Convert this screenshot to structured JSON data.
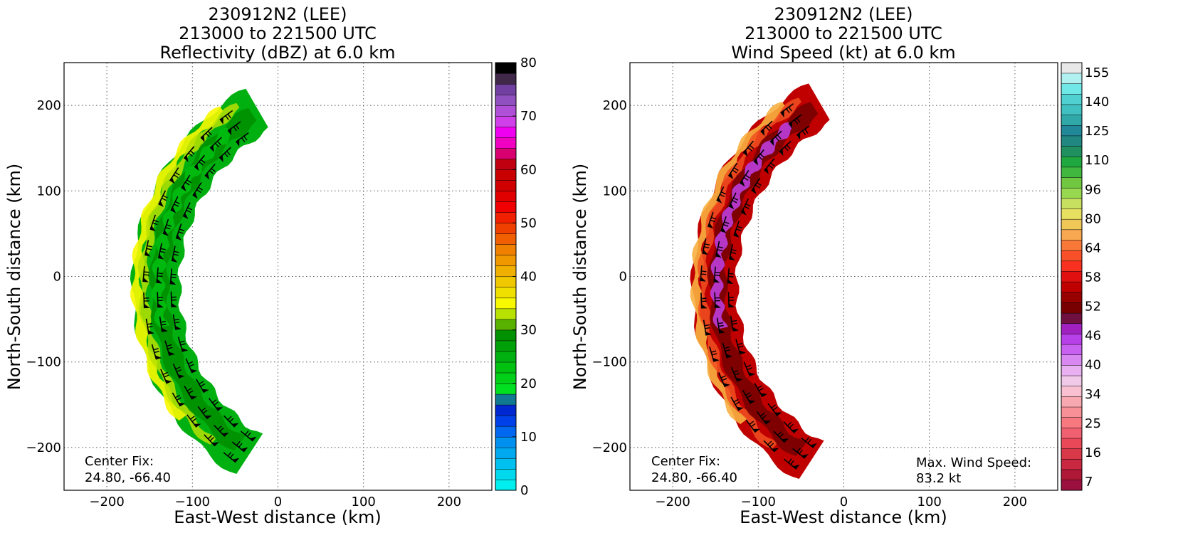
{
  "chart_data": [
    {
      "type": "heatmap",
      "title_lines": [
        "230912N2 (LEE)",
        "213000 to 221500 UTC",
        "Reflectivity (dBZ) at 6.0 km"
      ],
      "xlabel": "East-West distance (km)",
      "ylabel": "North-South distance (km)",
      "xlim": [
        -250,
        250
      ],
      "ylim": [
        -250,
        250
      ],
      "xticks": [
        -200,
        -100,
        0,
        100,
        200
      ],
      "yticks": [
        -200,
        -100,
        0,
        100,
        200
      ],
      "grid": true,
      "annotation_lines": [
        "Center Fix:",
        "24.80, -66.40"
      ],
      "colorbar": {
        "min": 0,
        "max": 80,
        "step": 2.5,
        "ticks": [
          0,
          10,
          20,
          30,
          40,
          50,
          60,
          70,
          80
        ],
        "colors": [
          "#00eeee",
          "#00d8ee",
          "#00c0f0",
          "#00a8f0",
          "#0090f0",
          "#0068f0",
          "#0040e8",
          "#0028d0",
          "#107890",
          "#00e020",
          "#00d018",
          "#00c010",
          "#00b010",
          "#00a008",
          "#009000",
          "#58b000",
          "#b8e000",
          "#f8f800",
          "#f0e000",
          "#f0c800",
          "#f0b000",
          "#f09800",
          "#f08000",
          "#f06000",
          "#f04000",
          "#f02000",
          "#f00000",
          "#e00000",
          "#d00000",
          "#c80000",
          "#c00010",
          "#d80070",
          "#f000c0",
          "#f000f0",
          "#d040e8",
          "#b050d8",
          "#9050c0",
          "#7040a0",
          "#402848",
          "#000000"
        ]
      },
      "field": {
        "arc": {
          "center": [
            95,
            -10
          ],
          "inner_radius": 210,
          "outer_radius": 265,
          "start_deg": 120,
          "end_deg": 237
        },
        "base_color": "#00b010",
        "band_colors": [
          "#f8f800",
          "#b8e000",
          "#009000",
          "#00c010"
        ]
      }
    },
    {
      "type": "heatmap",
      "title_lines": [
        "230912N2 (LEE)",
        "213000 to 221500 UTC",
        "Wind Speed (kt) at 6.0 km"
      ],
      "xlabel": "East-West distance (km)",
      "ylabel": "North-South distance (km)",
      "xlim": [
        -250,
        250
      ],
      "ylim": [
        -250,
        250
      ],
      "xticks": [
        -200,
        -100,
        0,
        100,
        200
      ],
      "yticks": [
        -200,
        -100,
        0,
        100,
        200
      ],
      "grid": true,
      "annotation_lines": [
        "Center Fix:",
        "24.80, -66.40"
      ],
      "annotation2_lines": [
        "Max. Wind Speed:",
        "83.2 kt"
      ],
      "colorbar": {
        "labels": [
          "155",
          "140",
          "125",
          "110",
          "96",
          "80",
          "64",
          "58",
          "52",
          "46",
          "40",
          "34",
          "25",
          "16",
          "7"
        ],
        "colors": [
          "#9c1040",
          "#b01838",
          "#c82840",
          "#d83848",
          "#e84858",
          "#f06070",
          "#f87880",
          "#f89098",
          "#f8a8b0",
          "#f8c0d0",
          "#f0c8e8",
          "#e8b0f0",
          "#d888f0",
          "#c860f0",
          "#b840e8",
          "#a020c0",
          "#701040",
          "#780000",
          "#980000",
          "#c00000",
          "#e01010",
          "#f83020",
          "#f85028",
          "#f87838",
          "#f8a850",
          "#f0c858",
          "#e8e060",
          "#c8e060",
          "#98d850",
          "#70c840",
          "#40b840",
          "#20a840",
          "#209060",
          "#208880",
          "#208898",
          "#30a8a8",
          "#40c0c0",
          "#50d0d0",
          "#70e8e8",
          "#b0f0f0",
          "#e8e8e8"
        ]
      },
      "field": {
        "arc": {
          "center": [
            95,
            -10
          ],
          "inner_radius": 220,
          "outer_radius": 272,
          "start_deg": 120,
          "end_deg": 237
        },
        "base_color": "#c00000",
        "band_colors": [
          "#f8b040",
          "#f05020",
          "#780000",
          "#c040e8"
        ]
      }
    }
  ]
}
